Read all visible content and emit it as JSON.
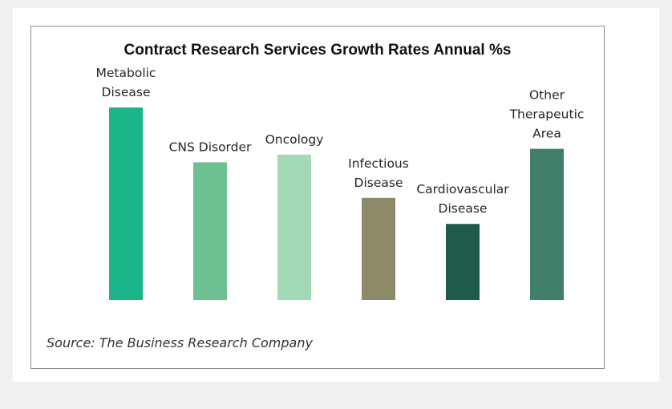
{
  "chart_data": {
    "type": "bar",
    "title": "Contract Research Services Growth Rates Annual %s",
    "categories": [
      [
        "Metabolic",
        "Disease"
      ],
      [
        "CNS Disorder"
      ],
      [
        "Oncology"
      ],
      [
        "Infectious",
        "Disease"
      ],
      [
        "Cardiovascular",
        "Disease"
      ],
      [
        "Other",
        "Therapeutic",
        "Area"
      ]
    ],
    "values": [
      100,
      71.5,
      75.5,
      53,
      39.5,
      78.5
    ],
    "colors": [
      "#1cb589",
      "#6cc092",
      "#a4d9b8",
      "#8d8a69",
      "#1f5a4b",
      "#417e6a"
    ],
    "ylim": [
      0,
      100
    ],
    "grid": false,
    "legend": "none"
  },
  "source": "Source:  The Business Research Company"
}
